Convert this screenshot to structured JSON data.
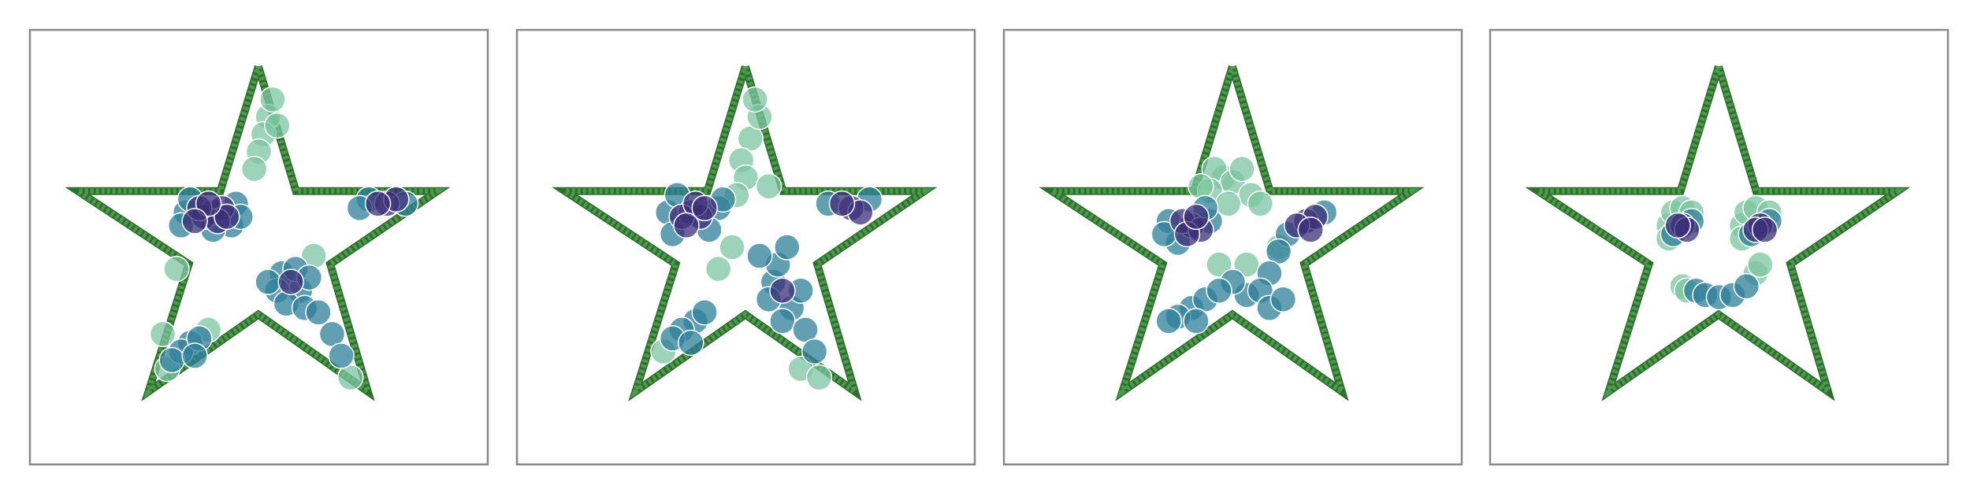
{
  "chart_data": [
    {
      "type": "scatter",
      "xlim": [
        0,
        1
      ],
      "ylim": [
        0,
        1
      ],
      "series": [
        {
          "mode": "line",
          "color": "#4c9a4c",
          "x": [
            0.499,
            0.581,
            0.89,
            0.656,
            0.738,
            0.499,
            0.259,
            0.347,
            0.105,
            0.416,
            0.499
          ],
          "values": [
            0.916,
            0.629,
            0.629,
            0.461,
            0.168,
            0.345,
            0.168,
            0.461,
            0.629,
            0.629,
            0.916
          ]
        },
        {
          "color": "#7cc4a0",
          "x": [
            0.52,
            0.51,
            0.53,
            0.5,
            0.54,
            0.49,
            0.3,
            0.39,
            0.29,
            0.7,
            0.62,
            0.32
          ],
          "values": [
            0.8,
            0.76,
            0.84,
            0.72,
            0.78,
            0.68,
            0.22,
            0.31,
            0.3,
            0.2,
            0.48,
            0.45
          ]
        },
        {
          "color": "#2f7f9a",
          "x": [
            0.34,
            0.45,
            0.44,
            0.35,
            0.4,
            0.46,
            0.33,
            0.74,
            0.82,
            0.72,
            0.55,
            0.59,
            0.58,
            0.54,
            0.61,
            0.56,
            0.6,
            0.52,
            0.35,
            0.33,
            0.37,
            0.31,
            0.36,
            0.63,
            0.66,
            0.68
          ],
          "values": [
            0.58,
            0.6,
            0.55,
            0.61,
            0.54,
            0.57,
            0.55,
            0.61,
            0.6,
            0.59,
            0.44,
            0.4,
            0.45,
            0.4,
            0.43,
            0.37,
            0.36,
            0.42,
            0.28,
            0.26,
            0.29,
            0.24,
            0.25,
            0.35,
            0.3,
            0.25
          ]
        },
        {
          "color": "#3b2f78",
          "x": [
            0.4,
            0.38,
            0.42,
            0.41,
            0.37,
            0.43,
            0.39,
            0.36,
            0.78,
            0.8,
            0.76,
            0.57
          ],
          "values": [
            0.58,
            0.57,
            0.59,
            0.56,
            0.59,
            0.57,
            0.6,
            0.56,
            0.6,
            0.61,
            0.6,
            0.42
          ]
        }
      ]
    },
    {
      "type": "scatter",
      "xlim": [
        0,
        1
      ],
      "ylim": [
        0,
        1
      ],
      "series": [
        {
          "mode": "line",
          "color": "#4c9a4c",
          "x": [
            0.499,
            0.581,
            0.89,
            0.656,
            0.738,
            0.499,
            0.259,
            0.347,
            0.105,
            0.416,
            0.499
          ],
          "values": [
            0.916,
            0.629,
            0.629,
            0.461,
            0.168,
            0.345,
            0.168,
            0.461,
            0.629,
            0.629,
            0.916
          ]
        },
        {
          "color": "#7cc4a0",
          "x": [
            0.51,
            0.53,
            0.52,
            0.49,
            0.5,
            0.47,
            0.44,
            0.32,
            0.62,
            0.66,
            0.48,
            0.55
          ],
          "values": [
            0.75,
            0.8,
            0.84,
            0.7,
            0.66,
            0.5,
            0.45,
            0.26,
            0.22,
            0.2,
            0.62,
            0.64
          ]
        },
        {
          "color": "#2f7f9a",
          "x": [
            0.33,
            0.44,
            0.42,
            0.35,
            0.45,
            0.34,
            0.68,
            0.77,
            0.56,
            0.6,
            0.62,
            0.55,
            0.58,
            0.63,
            0.57,
            0.65,
            0.39,
            0.36,
            0.41,
            0.34,
            0.38,
            0.59,
            0.53
          ],
          "values": [
            0.58,
            0.59,
            0.54,
            0.62,
            0.61,
            0.53,
            0.6,
            0.61,
            0.42,
            0.36,
            0.4,
            0.38,
            0.33,
            0.31,
            0.46,
            0.26,
            0.33,
            0.31,
            0.35,
            0.29,
            0.28,
            0.5,
            0.48
          ]
        },
        {
          "color": "#3b2f78",
          "x": [
            0.38,
            0.4,
            0.36,
            0.39,
            0.41,
            0.37,
            0.73,
            0.75,
            0.71,
            0.58
          ],
          "values": [
            0.58,
            0.57,
            0.57,
            0.6,
            0.59,
            0.55,
            0.59,
            0.58,
            0.6,
            0.4
          ]
        }
      ]
    },
    {
      "type": "scatter",
      "xlim": [
        0,
        1
      ],
      "ylim": [
        0,
        1
      ],
      "series": [
        {
          "mode": "line",
          "color": "#4c9a4c",
          "x": [
            0.499,
            0.581,
            0.89,
            0.656,
            0.738,
            0.499,
            0.259,
            0.347,
            0.105,
            0.416,
            0.499
          ],
          "values": [
            0.916,
            0.629,
            0.629,
            0.461,
            0.168,
            0.345,
            0.168,
            0.461,
            0.629,
            0.629,
            0.916
          ]
        },
        {
          "color": "#7cc4a0",
          "x": [
            0.48,
            0.46,
            0.5,
            0.52,
            0.45,
            0.54,
            0.56,
            0.43,
            0.49,
            0.6,
            0.53,
            0.47
          ],
          "values": [
            0.66,
            0.68,
            0.65,
            0.68,
            0.63,
            0.62,
            0.6,
            0.64,
            0.6,
            0.5,
            0.46,
            0.46
          ]
        },
        {
          "color": "#2f7f9a",
          "x": [
            0.36,
            0.45,
            0.38,
            0.44,
            0.35,
            0.62,
            0.7,
            0.6,
            0.58,
            0.53,
            0.56,
            0.5,
            0.58,
            0.61,
            0.41,
            0.38,
            0.44,
            0.36,
            0.47,
            0.42
          ],
          "values": [
            0.56,
            0.56,
            0.51,
            0.59,
            0.53,
            0.53,
            0.58,
            0.49,
            0.44,
            0.39,
            0.4,
            0.42,
            0.36,
            0.38,
            0.36,
            0.34,
            0.38,
            0.33,
            0.4,
            0.33
          ]
        },
        {
          "color": "#3b2f78",
          "x": [
            0.41,
            0.39,
            0.43,
            0.4,
            0.42,
            0.66,
            0.68,
            0.64,
            0.67
          ],
          "values": [
            0.55,
            0.56,
            0.54,
            0.53,
            0.57,
            0.56,
            0.57,
            0.55,
            0.54
          ]
        }
      ]
    },
    {
      "type": "scatter",
      "xlim": [
        0,
        1
      ],
      "ylim": [
        0,
        1
      ],
      "series": [
        {
          "mode": "line",
          "color": "#4c9a4c",
          "x": [
            0.499,
            0.581,
            0.89,
            0.656,
            0.738,
            0.499,
            0.259,
            0.347,
            0.105,
            0.416,
            0.499
          ],
          "values": [
            0.916,
            0.629,
            0.629,
            0.461,
            0.168,
            0.345,
            0.168,
            0.461,
            0.629,
            0.629,
            0.916
          ]
        },
        {
          "color": "#7cc4a0",
          "x": [
            0.39,
            0.4,
            0.42,
            0.44,
            0.39,
            0.55,
            0.56,
            0.58,
            0.61,
            0.55,
            0.42,
            0.43,
            0.58,
            0.59
          ],
          "values": [
            0.55,
            0.58,
            0.59,
            0.58,
            0.52,
            0.55,
            0.58,
            0.59,
            0.58,
            0.52,
            0.41,
            0.4,
            0.44,
            0.46
          ]
        },
        {
          "color": "#2f7f9a",
          "x": [
            0.44,
            0.4,
            0.61,
            0.57,
            0.45,
            0.47,
            0.5,
            0.53,
            0.56
          ],
          "values": [
            0.56,
            0.53,
            0.56,
            0.53,
            0.4,
            0.39,
            0.385,
            0.39,
            0.41
          ]
        },
        {
          "color": "#3b2f78",
          "x": [
            0.42,
            0.43,
            0.41,
            0.59,
            0.58,
            0.6
          ],
          "values": [
            0.55,
            0.54,
            0.55,
            0.55,
            0.54,
            0.54
          ]
        }
      ]
    }
  ]
}
